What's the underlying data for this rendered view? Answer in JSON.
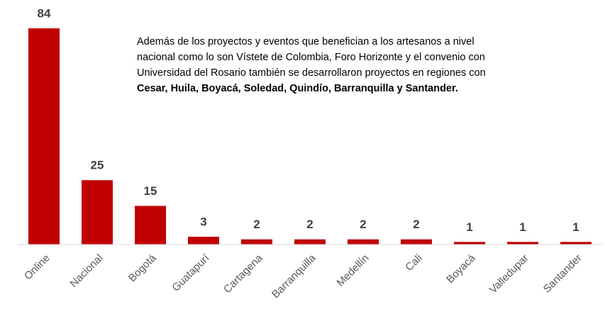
{
  "chart_data": {
    "type": "bar",
    "categories": [
      "Online",
      "Nacional",
      "Bogotá",
      "Guatapurí",
      "Cartagena",
      "Barranquilla",
      "Medellín",
      "Cali",
      "Boyacá",
      "Valledupar",
      "Santander"
    ],
    "values": [
      84,
      25,
      15,
      3,
      2,
      2,
      2,
      2,
      1,
      1,
      1
    ],
    "color": "#c00000",
    "annotation": {
      "lines": [
        "Además de los proyectos y eventos que benefician a los artesanos a nivel",
        "nacional como lo son Vístete de Colombia, Foro Horizonte y el convenio con",
        "Universidad del Rosario también se desarrollaron proyectos en regiones con"
      ],
      "bold_line": "Cesar, Huila, Boyacá, Soledad, Quindío, Barranquilla y Santander."
    }
  }
}
